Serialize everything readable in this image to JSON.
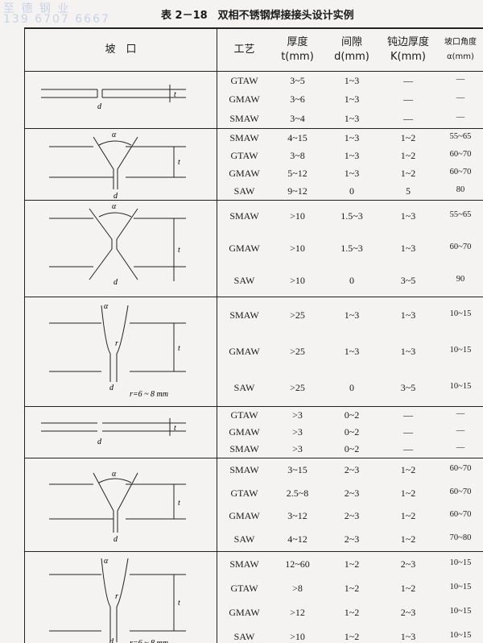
{
  "watermark": {
    "company": "至 德 钢 业",
    "phone": "139 6707 6667"
  },
  "title": "表 2－18　双相不锈钢焊接接头设计实例",
  "headers": {
    "groove": "坡　口",
    "process": "工艺",
    "thickness": "厚度",
    "thickness_unit": "t(mm)",
    "gap": "间隙",
    "gap_unit": "d(mm)",
    "root_face": "钝边厚度",
    "root_face_unit": "K(mm)",
    "angle": "坡口角度",
    "angle_unit": "α(mm)"
  },
  "labels": {
    "t": "t",
    "d": "d",
    "alpha": "α",
    "r": "r",
    "r_note": "r=6 ~ 8 mm"
  },
  "groups": [
    {
      "rows": [
        [
          "GTAW",
          "3~5",
          "1~3",
          "—",
          "—"
        ],
        [
          "GMAW",
          "3~6",
          "1~3",
          "—",
          "—"
        ],
        [
          "SMAW",
          "3~4",
          "1~3",
          "—",
          "—"
        ]
      ]
    },
    {
      "rows": [
        [
          "SMAW",
          "4~15",
          "1~3",
          "1~2",
          "55~65"
        ],
        [
          "GTAW",
          "3~8",
          "1~3",
          "1~2",
          "60~70"
        ],
        [
          "GMAW",
          "5~12",
          "1~3",
          "1~2",
          "60~70"
        ],
        [
          "SAW",
          "9~12",
          "0",
          "5",
          "80"
        ]
      ]
    },
    {
      "rows": [
        [
          "SMAW",
          ">10",
          "1.5~3",
          "1~3",
          "55~65"
        ],
        [
          "GMAW",
          ">10",
          "1.5~3",
          "1~3",
          "60~70"
        ],
        [
          "SAW",
          ">10",
          "0",
          "3~5",
          "90"
        ]
      ]
    },
    {
      "rows": [
        [
          "SMAW",
          ">25",
          "1~3",
          "1~3",
          "10~15"
        ],
        [
          "GMAW",
          ">25",
          "1~3",
          "1~3",
          "10~15"
        ],
        [
          "SAW",
          ">25",
          "0",
          "3~5",
          "10~15"
        ]
      ]
    },
    {
      "rows": [
        [
          "GTAW",
          ">3",
          "0~2",
          "—",
          "—"
        ],
        [
          "GMAW",
          ">3",
          "0~2",
          "—",
          "—"
        ],
        [
          "SMAW",
          ">3",
          "0~2",
          "—",
          "—"
        ]
      ]
    },
    {
      "rows": [
        [
          "SMAW",
          "3~15",
          "2~3",
          "1~2",
          "60~70"
        ],
        [
          "GTAW",
          "2.5~8",
          "2~3",
          "1~2",
          "60~70"
        ],
        [
          "GMAW",
          "3~12",
          "2~3",
          "1~2",
          "60~70"
        ],
        [
          "SAW",
          "4~12",
          "2~3",
          "1~2",
          "70~80"
        ]
      ]
    },
    {
      "rows": [
        [
          "SMAW",
          "12~60",
          "1~2",
          "2~3",
          "10~15"
        ],
        [
          "GTAW",
          ">8",
          "1~2",
          "1~2",
          "10~15"
        ],
        [
          "GMAW",
          ">12",
          "1~2",
          "2~3",
          "10~15"
        ],
        [
          "SAW",
          ">10",
          "1~2",
          "1~3",
          "10~15"
        ]
      ]
    }
  ]
}
